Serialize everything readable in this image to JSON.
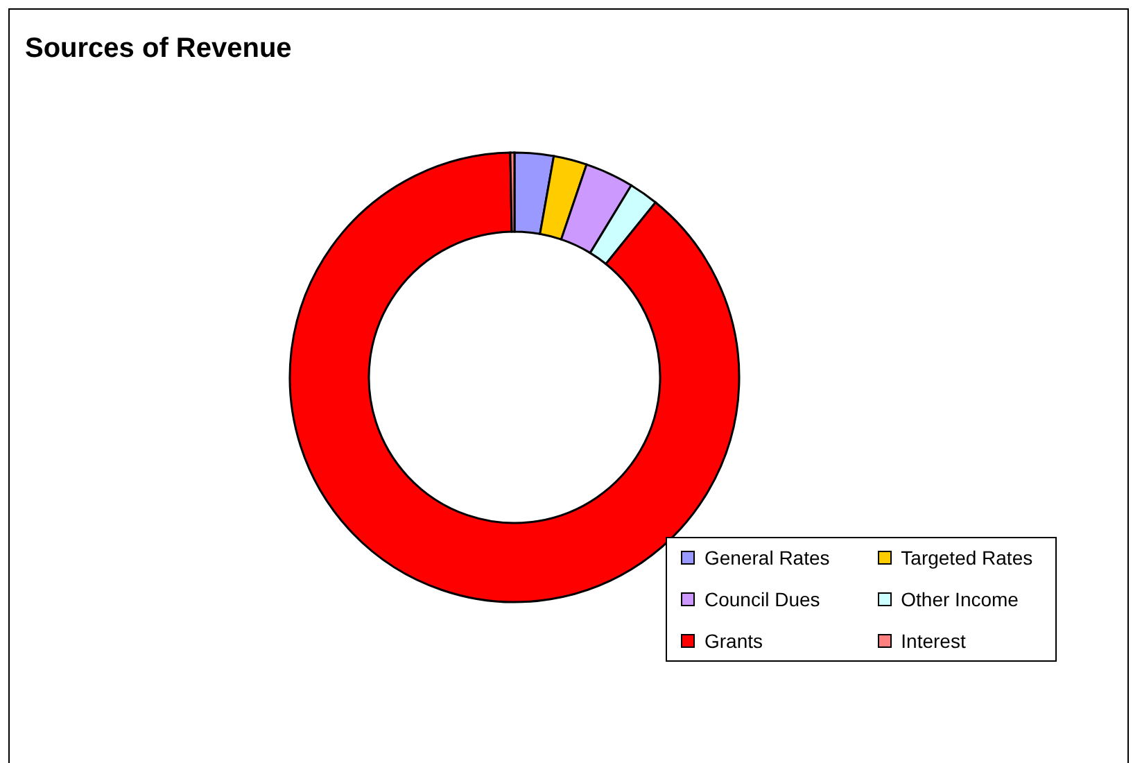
{
  "chart_data": {
    "type": "donut",
    "title": "Sources of Revenue",
    "categories": [
      "General Rates",
      "Targeted Rates",
      "Council Dues",
      "Other Income",
      "Grants",
      "Interest"
    ],
    "values": [
      2.8,
      2.4,
      3.5,
      2.1,
      88.9,
      0.3
    ],
    "colors": [
      "#9999ff",
      "#ffcc00",
      "#cc99ff",
      "#ccffff",
      "#ff0000",
      "#ff8080"
    ],
    "legend": "bottom right"
  }
}
